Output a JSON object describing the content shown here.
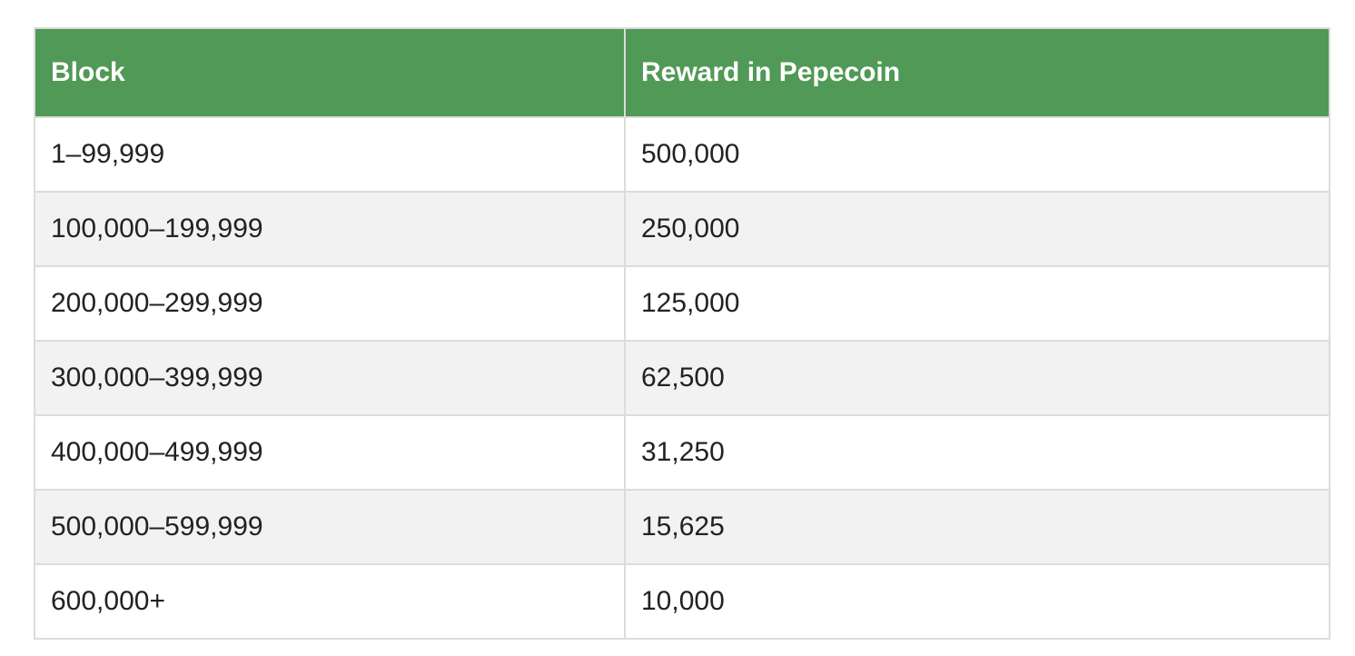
{
  "table": {
    "headers": {
      "block": "Block",
      "reward": "Reward in Pepecoin"
    },
    "rows": [
      {
        "block": "1–99,999",
        "reward": "500,000"
      },
      {
        "block": "100,000–199,999",
        "reward": "250,000"
      },
      {
        "block": "200,000–299,999",
        "reward": "125,000"
      },
      {
        "block": "300,000–399,999",
        "reward": "62,500"
      },
      {
        "block": "400,000–499,999",
        "reward": "31,250"
      },
      {
        "block": "500,000–599,999",
        "reward": "15,625"
      },
      {
        "block": "600,000+",
        "reward": "10,000"
      }
    ]
  },
  "colors": {
    "header_bg": "#509956",
    "header_text": "#ffffff",
    "row_alt_bg": "#f2f2f2",
    "border": "#dcdcdc"
  }
}
